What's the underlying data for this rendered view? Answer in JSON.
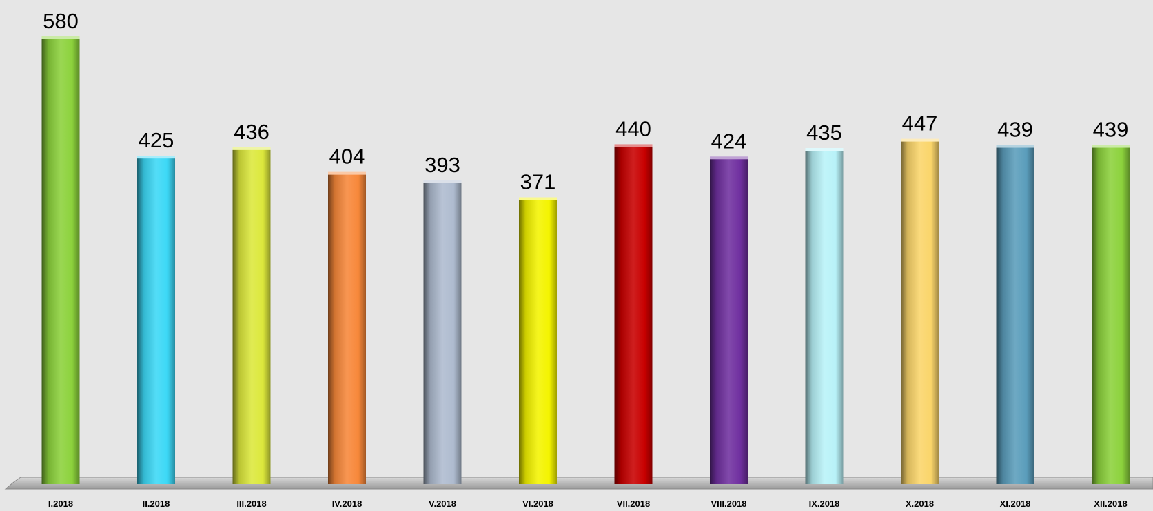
{
  "chart_data": {
    "type": "bar",
    "categories": [
      "I.2018",
      "II.2018",
      "III.2018",
      "IV.2018",
      "V.2018",
      "VI.2018",
      "VII.2018",
      "VIII.2018",
      "IX.2018",
      "X.2018",
      "XI.2018",
      "XII.2018"
    ],
    "values": [
      580,
      425,
      436,
      404,
      393,
      371,
      440,
      424,
      435,
      447,
      439,
      439
    ],
    "colors": [
      "#8cd23c",
      "#3cd8f6",
      "#dce83c",
      "#f7883a",
      "#aebbcf",
      "#f4f400",
      "#c80000",
      "#7030a0",
      "#b8f2f8",
      "#fad56a",
      "#5a9dbb",
      "#8cd23c"
    ],
    "title": "",
    "xlabel": "",
    "ylabel": "",
    "ylim": [
      0,
      600
    ],
    "grid": false,
    "legend": "none",
    "data_labels": true
  }
}
